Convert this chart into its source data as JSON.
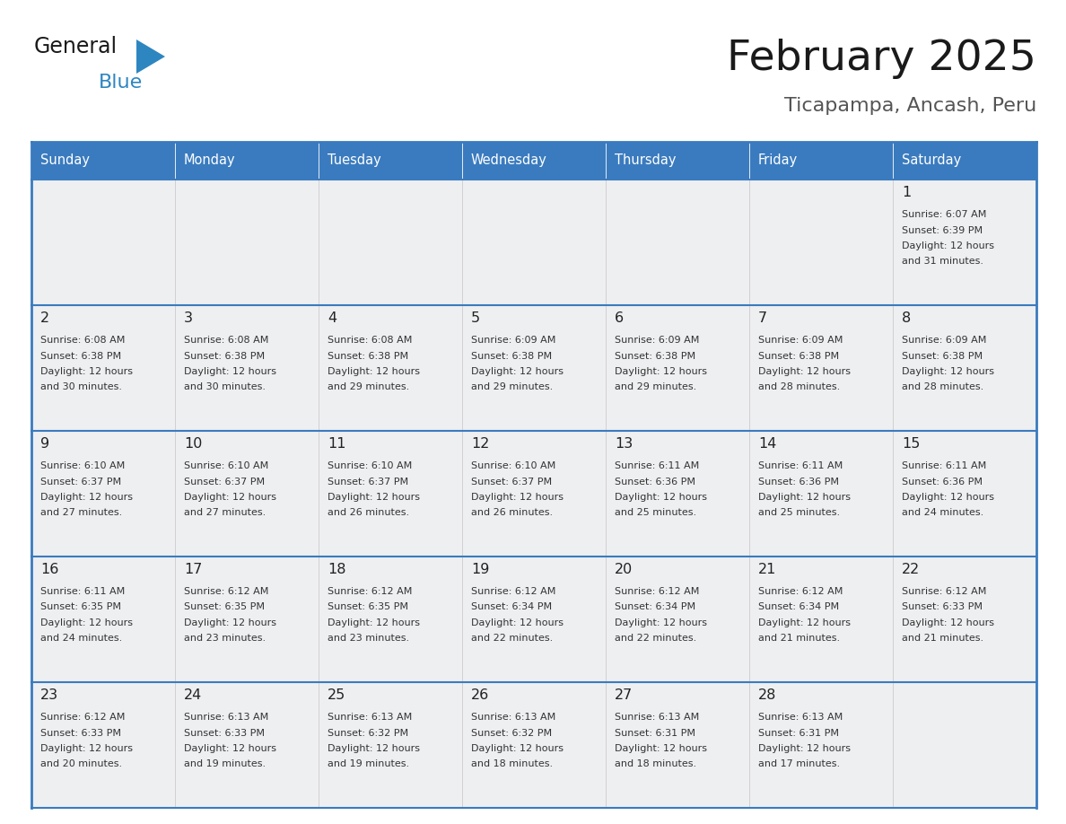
{
  "title": "February 2025",
  "subtitle": "Ticapampa, Ancash, Peru",
  "days_of_week": [
    "Sunday",
    "Monday",
    "Tuesday",
    "Wednesday",
    "Thursday",
    "Friday",
    "Saturday"
  ],
  "header_bg": "#3a7bbf",
  "header_text": "#ffffff",
  "cell_bg_light": "#eeeff0",
  "cell_bg_white": "#f8f9fa",
  "border_color": "#3a7bbf",
  "text_color": "#333333",
  "title_color": "#222222",
  "subtitle_color": "#555555",
  "day_num_color": "#333333",
  "calendar_data": [
    {
      "day": 1,
      "col": 6,
      "row": 0,
      "sunrise": "6:07 AM",
      "sunset": "6:39 PM",
      "daylight_h": "12 hours",
      "daylight_m": "and 31 minutes."
    },
    {
      "day": 2,
      "col": 0,
      "row": 1,
      "sunrise": "6:08 AM",
      "sunset": "6:38 PM",
      "daylight_h": "12 hours",
      "daylight_m": "and 30 minutes."
    },
    {
      "day": 3,
      "col": 1,
      "row": 1,
      "sunrise": "6:08 AM",
      "sunset": "6:38 PM",
      "daylight_h": "12 hours",
      "daylight_m": "and 30 minutes."
    },
    {
      "day": 4,
      "col": 2,
      "row": 1,
      "sunrise": "6:08 AM",
      "sunset": "6:38 PM",
      "daylight_h": "12 hours",
      "daylight_m": "and 29 minutes."
    },
    {
      "day": 5,
      "col": 3,
      "row": 1,
      "sunrise": "6:09 AM",
      "sunset": "6:38 PM",
      "daylight_h": "12 hours",
      "daylight_m": "and 29 minutes."
    },
    {
      "day": 6,
      "col": 4,
      "row": 1,
      "sunrise": "6:09 AM",
      "sunset": "6:38 PM",
      "daylight_h": "12 hours",
      "daylight_m": "and 29 minutes."
    },
    {
      "day": 7,
      "col": 5,
      "row": 1,
      "sunrise": "6:09 AM",
      "sunset": "6:38 PM",
      "daylight_h": "12 hours",
      "daylight_m": "and 28 minutes."
    },
    {
      "day": 8,
      "col": 6,
      "row": 1,
      "sunrise": "6:09 AM",
      "sunset": "6:38 PM",
      "daylight_h": "12 hours",
      "daylight_m": "and 28 minutes."
    },
    {
      "day": 9,
      "col": 0,
      "row": 2,
      "sunrise": "6:10 AM",
      "sunset": "6:37 PM",
      "daylight_h": "12 hours",
      "daylight_m": "and 27 minutes."
    },
    {
      "day": 10,
      "col": 1,
      "row": 2,
      "sunrise": "6:10 AM",
      "sunset": "6:37 PM",
      "daylight_h": "12 hours",
      "daylight_m": "and 27 minutes."
    },
    {
      "day": 11,
      "col": 2,
      "row": 2,
      "sunrise": "6:10 AM",
      "sunset": "6:37 PM",
      "daylight_h": "12 hours",
      "daylight_m": "and 26 minutes."
    },
    {
      "day": 12,
      "col": 3,
      "row": 2,
      "sunrise": "6:10 AM",
      "sunset": "6:37 PM",
      "daylight_h": "12 hours",
      "daylight_m": "and 26 minutes."
    },
    {
      "day": 13,
      "col": 4,
      "row": 2,
      "sunrise": "6:11 AM",
      "sunset": "6:36 PM",
      "daylight_h": "12 hours",
      "daylight_m": "and 25 minutes."
    },
    {
      "day": 14,
      "col": 5,
      "row": 2,
      "sunrise": "6:11 AM",
      "sunset": "6:36 PM",
      "daylight_h": "12 hours",
      "daylight_m": "and 25 minutes."
    },
    {
      "day": 15,
      "col": 6,
      "row": 2,
      "sunrise": "6:11 AM",
      "sunset": "6:36 PM",
      "daylight_h": "12 hours",
      "daylight_m": "and 24 minutes."
    },
    {
      "day": 16,
      "col": 0,
      "row": 3,
      "sunrise": "6:11 AM",
      "sunset": "6:35 PM",
      "daylight_h": "12 hours",
      "daylight_m": "and 24 minutes."
    },
    {
      "day": 17,
      "col": 1,
      "row": 3,
      "sunrise": "6:12 AM",
      "sunset": "6:35 PM",
      "daylight_h": "12 hours",
      "daylight_m": "and 23 minutes."
    },
    {
      "day": 18,
      "col": 2,
      "row": 3,
      "sunrise": "6:12 AM",
      "sunset": "6:35 PM",
      "daylight_h": "12 hours",
      "daylight_m": "and 23 minutes."
    },
    {
      "day": 19,
      "col": 3,
      "row": 3,
      "sunrise": "6:12 AM",
      "sunset": "6:34 PM",
      "daylight_h": "12 hours",
      "daylight_m": "and 22 minutes."
    },
    {
      "day": 20,
      "col": 4,
      "row": 3,
      "sunrise": "6:12 AM",
      "sunset": "6:34 PM",
      "daylight_h": "12 hours",
      "daylight_m": "and 22 minutes."
    },
    {
      "day": 21,
      "col": 5,
      "row": 3,
      "sunrise": "6:12 AM",
      "sunset": "6:34 PM",
      "daylight_h": "12 hours",
      "daylight_m": "and 21 minutes."
    },
    {
      "day": 22,
      "col": 6,
      "row": 3,
      "sunrise": "6:12 AM",
      "sunset": "6:33 PM",
      "daylight_h": "12 hours",
      "daylight_m": "and 21 minutes."
    },
    {
      "day": 23,
      "col": 0,
      "row": 4,
      "sunrise": "6:12 AM",
      "sunset": "6:33 PM",
      "daylight_h": "12 hours",
      "daylight_m": "and 20 minutes."
    },
    {
      "day": 24,
      "col": 1,
      "row": 4,
      "sunrise": "6:13 AM",
      "sunset": "6:33 PM",
      "daylight_h": "12 hours",
      "daylight_m": "and 19 minutes."
    },
    {
      "day": 25,
      "col": 2,
      "row": 4,
      "sunrise": "6:13 AM",
      "sunset": "6:32 PM",
      "daylight_h": "12 hours",
      "daylight_m": "and 19 minutes."
    },
    {
      "day": 26,
      "col": 3,
      "row": 4,
      "sunrise": "6:13 AM",
      "sunset": "6:32 PM",
      "daylight_h": "12 hours",
      "daylight_m": "and 18 minutes."
    },
    {
      "day": 27,
      "col": 4,
      "row": 4,
      "sunrise": "6:13 AM",
      "sunset": "6:31 PM",
      "daylight_h": "12 hours",
      "daylight_m": "and 18 minutes."
    },
    {
      "day": 28,
      "col": 5,
      "row": 4,
      "sunrise": "6:13 AM",
      "sunset": "6:31 PM",
      "daylight_h": "12 hours",
      "daylight_m": "and 17 minutes."
    }
  ],
  "num_rows": 5,
  "num_cols": 7
}
